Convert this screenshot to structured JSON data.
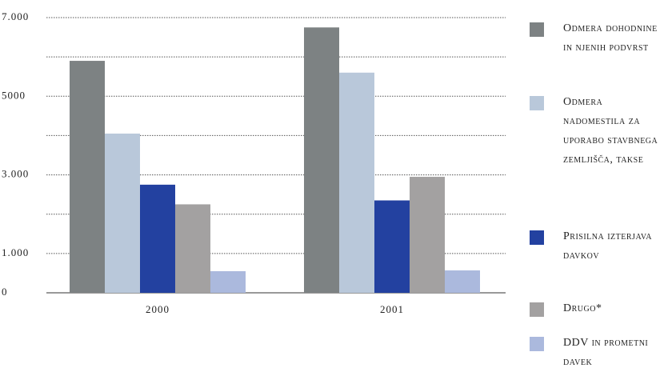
{
  "chart_data": {
    "type": "bar",
    "categories": [
      "2000",
      "2001"
    ],
    "series": [
      {
        "name": "Odmera dohodnine in njenih podvrst",
        "color": "#7d8283",
        "values": [
          5900,
          6750
        ]
      },
      {
        "name": "Odmera nadomestila za uporabo stavbnega zemljišča, takse",
        "color": "#b9c8da",
        "values": [
          4050,
          5600
        ]
      },
      {
        "name": "Prisilna izterjava davkov",
        "color": "#2341a0",
        "values": [
          2750,
          2350
        ]
      },
      {
        "name": "Drugo*",
        "color": "#a3a1a1",
        "values": [
          2250,
          2950
        ]
      },
      {
        "name": "DDV in prometni davek",
        "color": "#abb9dd",
        "values": [
          550,
          570
        ]
      }
    ],
    "ylim": [
      0,
      7000
    ],
    "yticks": [
      0,
      {
        "value": 1000,
        "label": "1.000"
      },
      {
        "value": 3000,
        "label": "3.000"
      },
      5000,
      {
        "value": 7000,
        "label": "7.000"
      }
    ],
    "minor_gridlines": [
      2000,
      4000,
      6000
    ],
    "grid": true
  }
}
